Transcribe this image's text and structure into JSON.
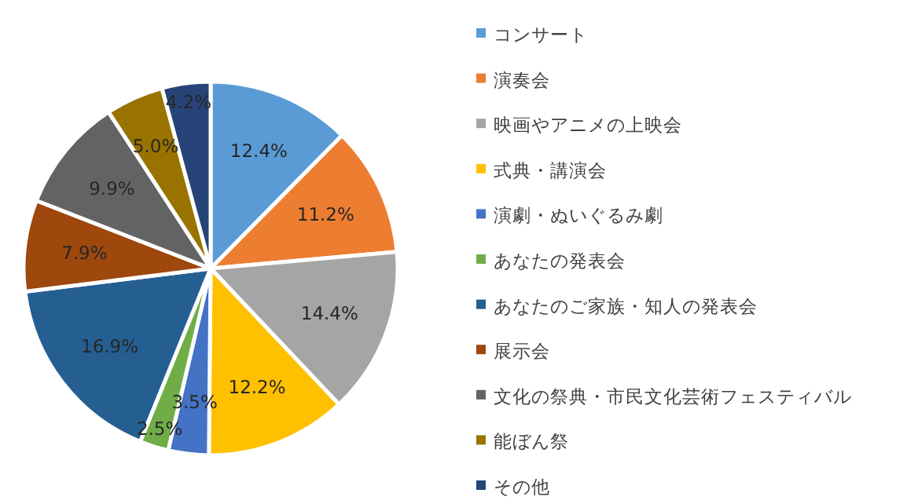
{
  "chart_data": {
    "type": "pie",
    "categories": [
      "コンサート",
      "演奏会",
      "映画やアニメの上映会",
      "式典・講演会",
      "演劇・ぬいぐるみ劇",
      "あなたの発表会",
      "あなたのご家族・知人の発表会",
      "展示会",
      "文化の祭典・市民文化芸術フェスティバル",
      "能ぼん祭",
      "その他"
    ],
    "values": [
      12.4,
      11.2,
      14.4,
      12.2,
      3.5,
      2.5,
      16.9,
      7.9,
      9.9,
      5.0,
      4.2
    ],
    "value_labels": [
      "12.4%",
      "11.2%",
      "14.4%",
      "12.2%",
      "3.5%",
      "2.5%",
      "16.9%",
      "7.9%",
      "9.9%",
      "5.0%",
      "4.2%"
    ],
    "colors": [
      "#5b9bd5",
      "#ed7d31",
      "#a5a5a5",
      "#ffc000",
      "#4472c4",
      "#70ad47",
      "#255e91",
      "#9e480e",
      "#636363",
      "#997300",
      "#264478"
    ],
    "legend": "right"
  }
}
